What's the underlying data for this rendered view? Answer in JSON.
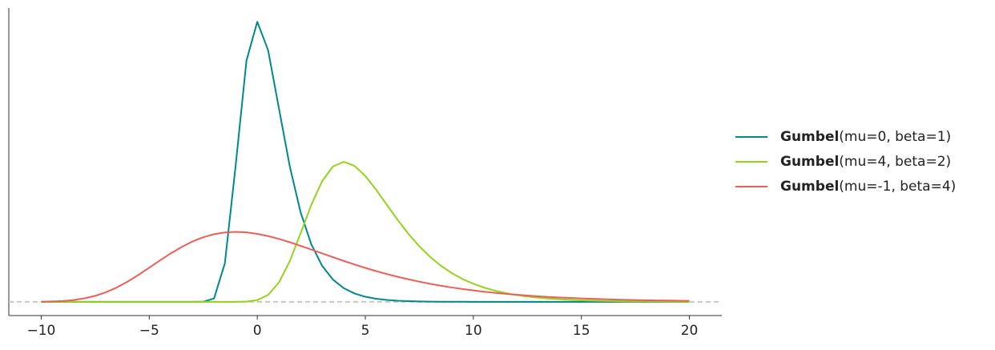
{
  "chart_data": {
    "type": "line",
    "x": [
      -10,
      -9.5,
      -9,
      -8.5,
      -8,
      -7.5,
      -7,
      -6.5,
      -6,
      -5.5,
      -5,
      -4.5,
      -4,
      -3.5,
      -3,
      -2.5,
      -2,
      -1.5,
      -1,
      -0.5,
      0,
      0.5,
      1,
      1.5,
      2,
      2.5,
      3,
      3.5,
      4,
      4.5,
      5,
      5.5,
      6,
      6.5,
      7,
      7.5,
      8,
      8.5,
      9,
      9.5,
      10,
      10.5,
      11,
      11.5,
      12,
      12.5,
      13,
      13.5,
      14,
      14.5,
      15,
      15.5,
      16,
      16.5,
      17,
      17.5,
      18,
      18.5,
      19,
      19.5,
      20
    ],
    "series": [
      {
        "name": "Gumbel(mu=0, beta=1)",
        "color": "#00898a",
        "values": [
          0,
          0,
          0,
          0,
          0,
          0,
          0,
          0,
          0,
          0,
          0,
          0,
          0,
          0,
          0,
          0.0001,
          0.0046,
          0.0507,
          0.1794,
          0.317,
          0.3679,
          0.3307,
          0.2546,
          0.1785,
          0.1182,
          0.0756,
          0.0474,
          0.0293,
          0.018,
          0.011,
          0.0067,
          0.0041,
          0.0025,
          0.0015,
          0.0009,
          0.0006,
          0.0003,
          0.0002,
          0.0001,
          0.0001,
          0,
          0,
          0,
          0,
          0,
          0,
          0,
          0,
          0,
          0,
          0,
          0,
          0,
          0,
          0,
          0,
          0,
          0,
          0,
          0,
          0
        ]
      },
      {
        "name": "Gumbel(mu=4, beta=2)",
        "color": "#94d31d",
        "values": [
          0,
          0,
          0,
          0,
          0,
          0,
          0,
          0,
          0,
          0,
          0,
          0,
          0,
          0,
          0,
          0,
          0,
          0,
          0,
          0.0004,
          0.0023,
          0.0091,
          0.0254,
          0.0532,
          0.0897,
          0.1274,
          0.1585,
          0.1778,
          0.1839,
          0.1787,
          0.1653,
          0.1473,
          0.1273,
          0.1076,
          0.0892,
          0.073,
          0.0591,
          0.0474,
          0.0378,
          0.03,
          0.0237,
          0.0187,
          0.0147,
          0.0115,
          0.009,
          0.007,
          0.0055,
          0.0043,
          0.0034,
          0.0026,
          0.002,
          0.0016,
          0.0012,
          0.001,
          0.0007,
          0.0006,
          0.0005,
          0.0004,
          0.0003,
          0.0002,
          0.0002
        ]
      },
      {
        "name": "Gumbel(mu=-1, beta=4)",
        "color": "#ec5f58",
        "values": [
          0.0002,
          0.0005,
          0.0011,
          0.0024,
          0.0046,
          0.0079,
          0.0127,
          0.0189,
          0.0266,
          0.0354,
          0.0449,
          0.0545,
          0.0637,
          0.0721,
          0.0793,
          0.0849,
          0.0889,
          0.0912,
          0.092,
          0.0913,
          0.0893,
          0.0864,
          0.0827,
          0.0784,
          0.0736,
          0.0687,
          0.0637,
          0.0587,
          0.0538,
          0.0491,
          0.0446,
          0.0404,
          0.0365,
          0.0329,
          0.0296,
          0.0265,
          0.0237,
          0.0212,
          0.0189,
          0.0169,
          0.015,
          0.0133,
          0.0119,
          0.0105,
          0.0093,
          0.0083,
          0.0073,
          0.0065,
          0.0057,
          0.0051,
          0.0045,
          0.004,
          0.0035,
          0.0031,
          0.0027,
          0.0024,
          0.0021,
          0.0019,
          0.0017,
          0.0015,
          0.0013
        ]
      }
    ],
    "xlim": [
      -11.5,
      21.5
    ],
    "xticks": [
      {
        "value": -10,
        "label": "−10"
      },
      {
        "value": -5,
        "label": "−5"
      },
      0,
      5,
      10,
      15,
      20
    ],
    "ylim": [
      -0.018,
      0.386
    ],
    "hline": 0,
    "legend": "right"
  }
}
